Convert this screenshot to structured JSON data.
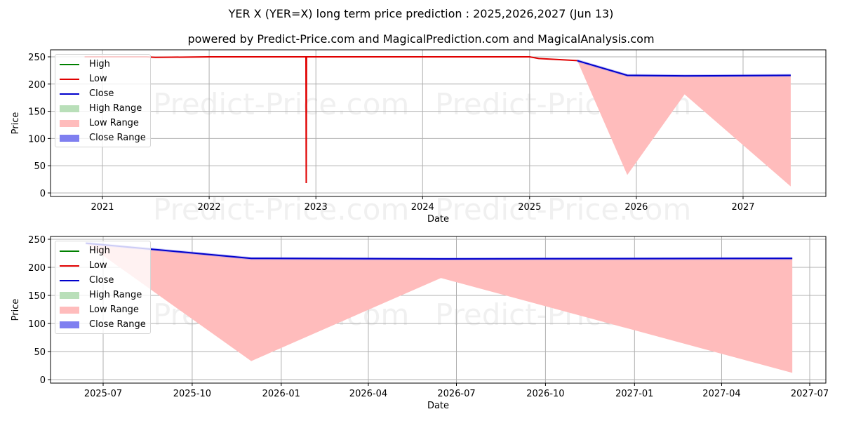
{
  "header": {
    "title": "YER X (YER=X) long term price prediction : 2025,2026,2027 (Jun 13)",
    "subtitle": "powered by Predict-Price.com and MagicalPrediction.com and MagicalAnalysis.com"
  },
  "watermark": "Predict-Price.com",
  "legend": {
    "items": [
      {
        "label": "High",
        "kind": "line",
        "color": "#008000"
      },
      {
        "label": "Low",
        "kind": "line",
        "color": "#e00000"
      },
      {
        "label": "Close",
        "kind": "line",
        "color": "#0000cc"
      },
      {
        "label": "High Range",
        "kind": "patch",
        "color": "#b9dfb9"
      },
      {
        "label": "Low Range",
        "kind": "patch",
        "color": "#ffbcbc"
      },
      {
        "label": "Close Range",
        "kind": "patch",
        "color": "#7f7ff0"
      }
    ]
  },
  "colors": {
    "high": "#008000",
    "low": "#e00000",
    "close": "#0000cc",
    "low_range": "#ffbcbc",
    "close_range": "#7f7ff0",
    "grid": "#b0b0b0"
  },
  "chart_data": [
    {
      "type": "line",
      "title": "",
      "xlabel": "Date",
      "ylabel": "Price",
      "ylim": [
        0,
        260
      ],
      "grid": true,
      "legend_position": "upper left",
      "x_ticks": [
        "2021",
        "2022",
        "2023",
        "2024",
        "2025",
        "2026",
        "2027"
      ],
      "y_ticks": [
        "0",
        "50",
        "100",
        "150",
        "200",
        "250"
      ],
      "series": [
        {
          "name": "Low",
          "x": [
            "2020-11",
            "2021-06",
            "2021-07",
            "2022-01",
            "2022-06",
            "2022-11-28",
            "2022-11-29",
            "2022-11-30",
            "2023-06",
            "2024-01",
            "2024-06",
            "2024-11",
            "2025-01",
            "2025-02",
            "2025-06-13"
          ],
          "values": [
            250,
            250,
            249,
            250,
            250,
            250,
            18,
            250,
            250,
            250,
            250,
            250,
            250,
            247,
            243
          ]
        },
        {
          "name": "Close",
          "x": [
            "2025-06-13",
            "2025-12-01",
            "2026-06-15",
            "2027-06-13"
          ],
          "values": [
            243,
            216,
            215,
            216
          ]
        },
        {
          "name": "Low Range",
          "x": [
            "2025-06-13",
            "2025-12-01",
            "2026-06-15",
            "2027-06-13"
          ],
          "upper": [
            243,
            216,
            215,
            216
          ],
          "lower": [
            243,
            33,
            181,
            12
          ]
        }
      ]
    },
    {
      "type": "line",
      "title": "",
      "xlabel": "Date",
      "ylabel": "Price",
      "ylim": [
        0,
        250
      ],
      "grid": true,
      "legend_position": "upper left",
      "x_ticks": [
        "2025-07",
        "2025-10",
        "2026-01",
        "2026-04",
        "2026-07",
        "2026-10",
        "2027-01",
        "2027-04",
        "2027-07"
      ],
      "y_ticks": [
        "0",
        "50",
        "100",
        "150",
        "200",
        "250"
      ],
      "series": [
        {
          "name": "Close",
          "x": [
            "2025-06-13",
            "2025-12-01",
            "2026-06-15",
            "2027-06-13"
          ],
          "values": [
            243,
            216,
            215,
            216
          ]
        },
        {
          "name": "Low Range",
          "x": [
            "2025-06-13",
            "2025-12-01",
            "2026-06-15",
            "2027-06-13"
          ],
          "upper": [
            243,
            216,
            215,
            216
          ],
          "lower": [
            243,
            33,
            181,
            12
          ]
        }
      ]
    }
  ]
}
